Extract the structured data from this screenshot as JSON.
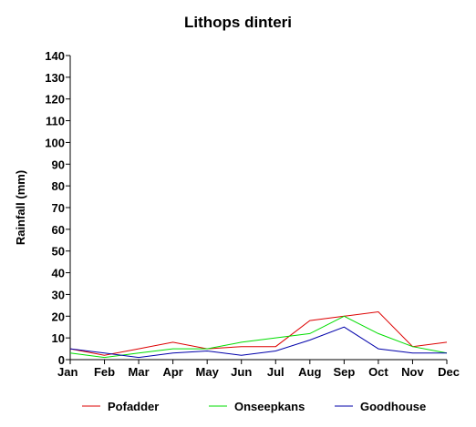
{
  "chart_data": {
    "type": "line",
    "title": "Lithops dinteri",
    "xlabel": "",
    "ylabel": "Rainfall (mm)",
    "ylim": [
      0,
      140
    ],
    "yticks": [
      0,
      10,
      20,
      30,
      40,
      50,
      60,
      70,
      80,
      90,
      100,
      110,
      120,
      130,
      140
    ],
    "grid": false,
    "legend_position": "bottom",
    "categories": [
      "Jan",
      "Feb",
      "Mar",
      "Apr",
      "May",
      "Jun",
      "Jul",
      "Aug",
      "Sep",
      "Oct",
      "Nov",
      "Dec"
    ],
    "series": [
      {
        "name": "Pofadder",
        "color": "#dd0000",
        "values": [
          5,
          2,
          5,
          8,
          5,
          6,
          6,
          18,
          20,
          22,
          6,
          8
        ]
      },
      {
        "name": "Onseepkans",
        "color": "#00dd00",
        "values": [
          3,
          1,
          3,
          5,
          5,
          8,
          10,
          12,
          20,
          12,
          6,
          3
        ]
      },
      {
        "name": "Goodhouse",
        "color": "#0000aa",
        "values": [
          5,
          3,
          1,
          3,
          4,
          2,
          4,
          9,
          15,
          5,
          3,
          3
        ]
      }
    ]
  }
}
